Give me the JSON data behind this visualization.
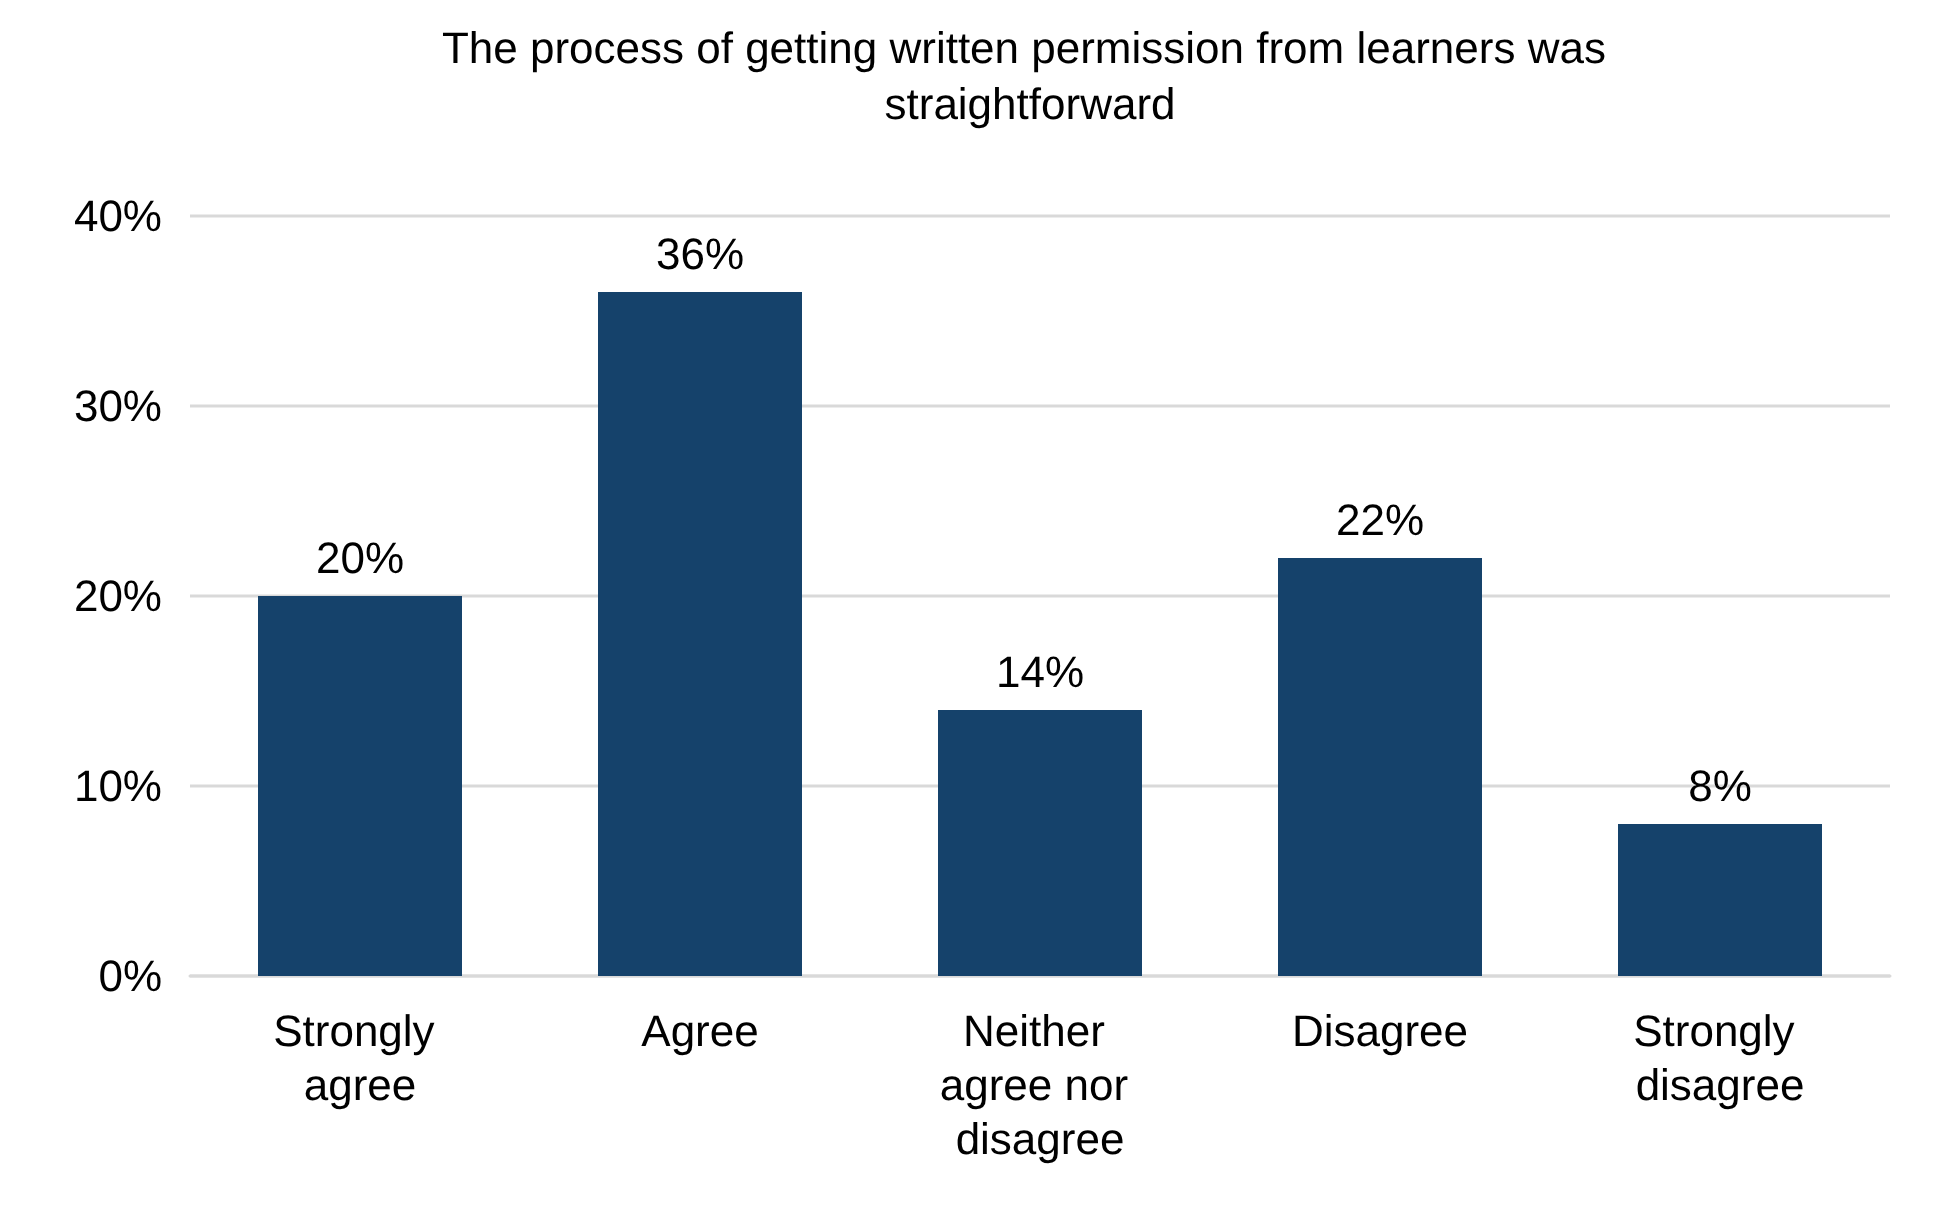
{
  "chart_data": {
    "type": "bar",
    "title": "The process of getting written permission from learners was straightforward",
    "categories": [
      "Strongly agree",
      "Agree",
      "Neither agree nor disagree",
      "Disagree",
      "Strongly disagree"
    ],
    "values": [
      20,
      36,
      14,
      22,
      8
    ],
    "color": "#15426b",
    "value_labels": [
      "20%",
      "36%",
      "14%",
      "22%",
      "8%"
    ],
    "ylim": [
      0,
      40
    ],
    "yticks": [
      {
        "value": 0,
        "label": "0%"
      },
      {
        "value": 10,
        "label": "10%"
      },
      {
        "value": 20,
        "label": "20%"
      },
      {
        "value": 30,
        "label": "30%"
      },
      {
        "value": 40,
        "label": "40%"
      }
    ],
    "grid": "y"
  }
}
